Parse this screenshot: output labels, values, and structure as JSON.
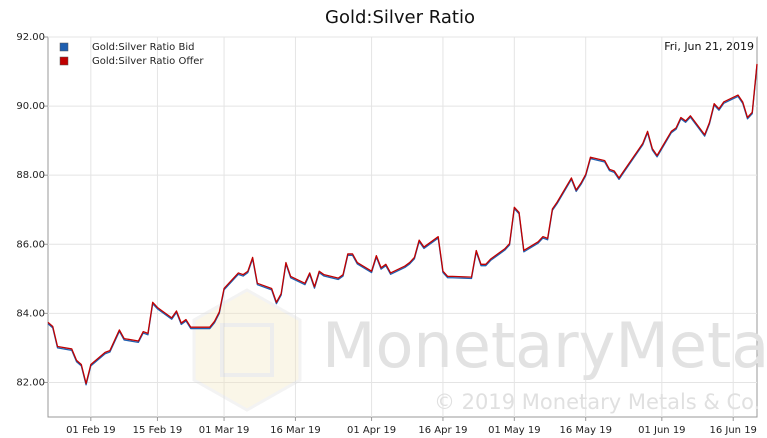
{
  "chart_data": {
    "type": "line",
    "title": "Gold:Silver Ratio",
    "annotation": "Fri, Jun 21, 2019",
    "watermark": "MonetaryMetals",
    "copyright": "© 2019 Monetary Metals & Co.",
    "legend": "upper left",
    "grid": true,
    "x": [
      "2019-01-23",
      "2019-01-24",
      "2019-01-25",
      "2019-01-28",
      "2019-01-29",
      "2019-01-30",
      "2019-01-31",
      "2019-02-01",
      "2019-02-04",
      "2019-02-05",
      "2019-02-06",
      "2019-02-07",
      "2019-02-08",
      "2019-02-11",
      "2019-02-12",
      "2019-02-13",
      "2019-02-14",
      "2019-02-15",
      "2019-02-18",
      "2019-02-19",
      "2019-02-20",
      "2019-02-21",
      "2019-02-22",
      "2019-02-25",
      "2019-02-26",
      "2019-02-27",
      "2019-02-28",
      "2019-03-01",
      "2019-03-04",
      "2019-03-05",
      "2019-03-06",
      "2019-03-07",
      "2019-03-08",
      "2019-03-11",
      "2019-03-12",
      "2019-03-13",
      "2019-03-14",
      "2019-03-15",
      "2019-03-18",
      "2019-03-19",
      "2019-03-20",
      "2019-03-21",
      "2019-03-22",
      "2019-03-25",
      "2019-03-26",
      "2019-03-27",
      "2019-03-28",
      "2019-03-29",
      "2019-04-01",
      "2019-04-02",
      "2019-04-03",
      "2019-04-04",
      "2019-04-05",
      "2019-04-08",
      "2019-04-09",
      "2019-04-10",
      "2019-04-11",
      "2019-04-12",
      "2019-04-15",
      "2019-04-16",
      "2019-04-17",
      "2019-04-18",
      "2019-04-22",
      "2019-04-23",
      "2019-04-24",
      "2019-04-25",
      "2019-04-26",
      "2019-04-29",
      "2019-04-30",
      "2019-05-01",
      "2019-05-02",
      "2019-05-03",
      "2019-05-06",
      "2019-05-07",
      "2019-05-08",
      "2019-05-09",
      "2019-05-10",
      "2019-05-13",
      "2019-05-14",
      "2019-05-15",
      "2019-05-16",
      "2019-05-17",
      "2019-05-20",
      "2019-05-21",
      "2019-05-22",
      "2019-05-23",
      "2019-05-24",
      "2019-05-28",
      "2019-05-29",
      "2019-05-30",
      "2019-05-31",
      "2019-06-03",
      "2019-06-04",
      "2019-06-05",
      "2019-06-06",
      "2019-06-07",
      "2019-06-10",
      "2019-06-11",
      "2019-06-12",
      "2019-06-13",
      "2019-06-14",
      "2019-06-17",
      "2019-06-18",
      "2019-06-19",
      "2019-06-20",
      "2019-06-21"
    ],
    "series": [
      {
        "name": "Gold:Silver Ratio Bid",
        "color": "#1f5fb0",
        "values": [
          83.7,
          83.58,
          83.0,
          82.93,
          82.6,
          82.48,
          81.93,
          82.48,
          82.83,
          82.88,
          83.18,
          83.48,
          83.23,
          83.16,
          83.43,
          83.38,
          84.28,
          84.13,
          83.83,
          84.03,
          83.68,
          83.78,
          83.56,
          83.56,
          83.56,
          83.73,
          84.0,
          84.68,
          85.13,
          85.08,
          85.18,
          85.58,
          84.83,
          84.68,
          84.28,
          84.53,
          85.43,
          85.03,
          84.83,
          85.13,
          84.73,
          85.18,
          85.08,
          84.98,
          85.08,
          85.68,
          85.68,
          85.43,
          85.18,
          85.63,
          85.28,
          85.38,
          85.13,
          85.33,
          85.43,
          85.58,
          86.08,
          85.88,
          86.18,
          85.18,
          85.03,
          85.03,
          85.01,
          85.78,
          85.38,
          85.38,
          85.53,
          85.83,
          85.98,
          87.03,
          86.88,
          85.78,
          86.03,
          86.18,
          86.13,
          86.98,
          87.18,
          87.88,
          87.53,
          87.73,
          87.98,
          88.48,
          88.38,
          88.13,
          88.08,
          87.88,
          88.08,
          88.88,
          89.23,
          88.73,
          88.53,
          89.23,
          89.33,
          89.63,
          89.53,
          89.68,
          89.13,
          89.48,
          90.03,
          89.88,
          90.08,
          90.28,
          90.08,
          89.63,
          89.78,
          91.18
        ]
      },
      {
        "name": "Gold:Silver Ratio Offer",
        "color": "#c00000",
        "values": [
          83.74,
          83.62,
          83.04,
          82.97,
          82.64,
          82.52,
          81.97,
          82.52,
          82.87,
          82.92,
          83.22,
          83.52,
          83.27,
          83.2,
          83.47,
          83.42,
          84.32,
          84.17,
          83.87,
          84.07,
          83.72,
          83.82,
          83.6,
          83.6,
          83.6,
          83.77,
          84.04,
          84.72,
          85.17,
          85.12,
          85.22,
          85.62,
          84.87,
          84.72,
          84.32,
          84.57,
          85.47,
          85.07,
          84.87,
          85.17,
          84.77,
          85.22,
          85.12,
          85.02,
          85.12,
          85.72,
          85.72,
          85.47,
          85.22,
          85.67,
          85.32,
          85.42,
          85.17,
          85.37,
          85.47,
          85.62,
          86.12,
          85.92,
          86.22,
          85.22,
          85.07,
          85.07,
          85.05,
          85.82,
          85.42,
          85.42,
          85.57,
          85.87,
          86.02,
          87.07,
          86.92,
          85.82,
          86.07,
          86.22,
          86.17,
          87.02,
          87.22,
          87.92,
          87.57,
          87.77,
          88.02,
          88.52,
          88.42,
          88.17,
          88.12,
          87.92,
          88.12,
          88.92,
          89.27,
          88.77,
          88.57,
          89.27,
          89.37,
          89.67,
          89.57,
          89.72,
          89.17,
          89.52,
          90.07,
          89.92,
          90.12,
          90.32,
          90.12,
          89.67,
          89.82,
          91.22
        ]
      }
    ],
    "xlim": [
      "2019-01-23",
      "2019-06-21"
    ],
    "xticks": [
      {
        "value": "2019-02-01",
        "label": "01 Feb 19"
      },
      {
        "value": "2019-02-15",
        "label": "15 Feb 19"
      },
      {
        "value": "2019-03-01",
        "label": "01 Mar 19"
      },
      {
        "value": "2019-03-16",
        "label": "16 Mar 19"
      },
      {
        "value": "2019-04-01",
        "label": "01 Apr 19"
      },
      {
        "value": "2019-04-16",
        "label": "16 Apr 19"
      },
      {
        "value": "2019-05-01",
        "label": "01 May 19"
      },
      {
        "value": "2019-05-16",
        "label": "16 May 19"
      },
      {
        "value": "2019-06-01",
        "label": "01 Jun 19"
      },
      {
        "value": "2019-06-16",
        "label": "16 Jun 19"
      }
    ],
    "ylim": [
      81,
      92
    ],
    "yticks": [
      {
        "value": 82,
        "label": "82.00"
      },
      {
        "value": 84,
        "label": "84.00"
      },
      {
        "value": 86,
        "label": "86.00"
      },
      {
        "value": 88,
        "label": "88.00"
      },
      {
        "value": 90,
        "label": "90.00"
      },
      {
        "value": 92,
        "label": "92.00"
      }
    ]
  }
}
